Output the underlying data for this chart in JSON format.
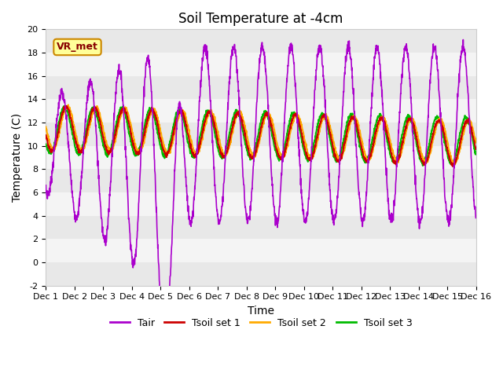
{
  "title": "Soil Temperature at -4cm",
  "xlabel": "Time",
  "ylabel": "Temperature (C)",
  "ylim": [
    -2,
    20
  ],
  "xlim": [
    0,
    15
  ],
  "xtick_positions": [
    0,
    1,
    2,
    3,
    4,
    5,
    6,
    7,
    8,
    9,
    10,
    11,
    12,
    13,
    14,
    15
  ],
  "xtick_labels": [
    "Dec 1",
    "Dec 2",
    "Dec 3",
    "Dec 4",
    "Dec 5",
    "Dec 6",
    "Dec 7",
    "Dec 8",
    "Dec 9",
    "Dec 10",
    "Dec 11",
    "Dec 12",
    "Dec 13",
    "Dec 14",
    "Dec 15",
    "Dec 16"
  ],
  "colors": {
    "Tair": "#aa00cc",
    "Tsoil1": "#cc0000",
    "Tsoil2": "#ffaa00",
    "Tsoil3": "#00bb00"
  },
  "legend_labels": [
    "Tair",
    "Tsoil set 1",
    "Tsoil set 2",
    "Tsoil set 3"
  ],
  "vr_met_label": "VR_met",
  "bg_band_color_a": "#e8e8e8",
  "bg_band_color_b": "#f4f4f4",
  "title_fontsize": 12,
  "axis_label_fontsize": 10,
  "tick_fontsize": 8
}
